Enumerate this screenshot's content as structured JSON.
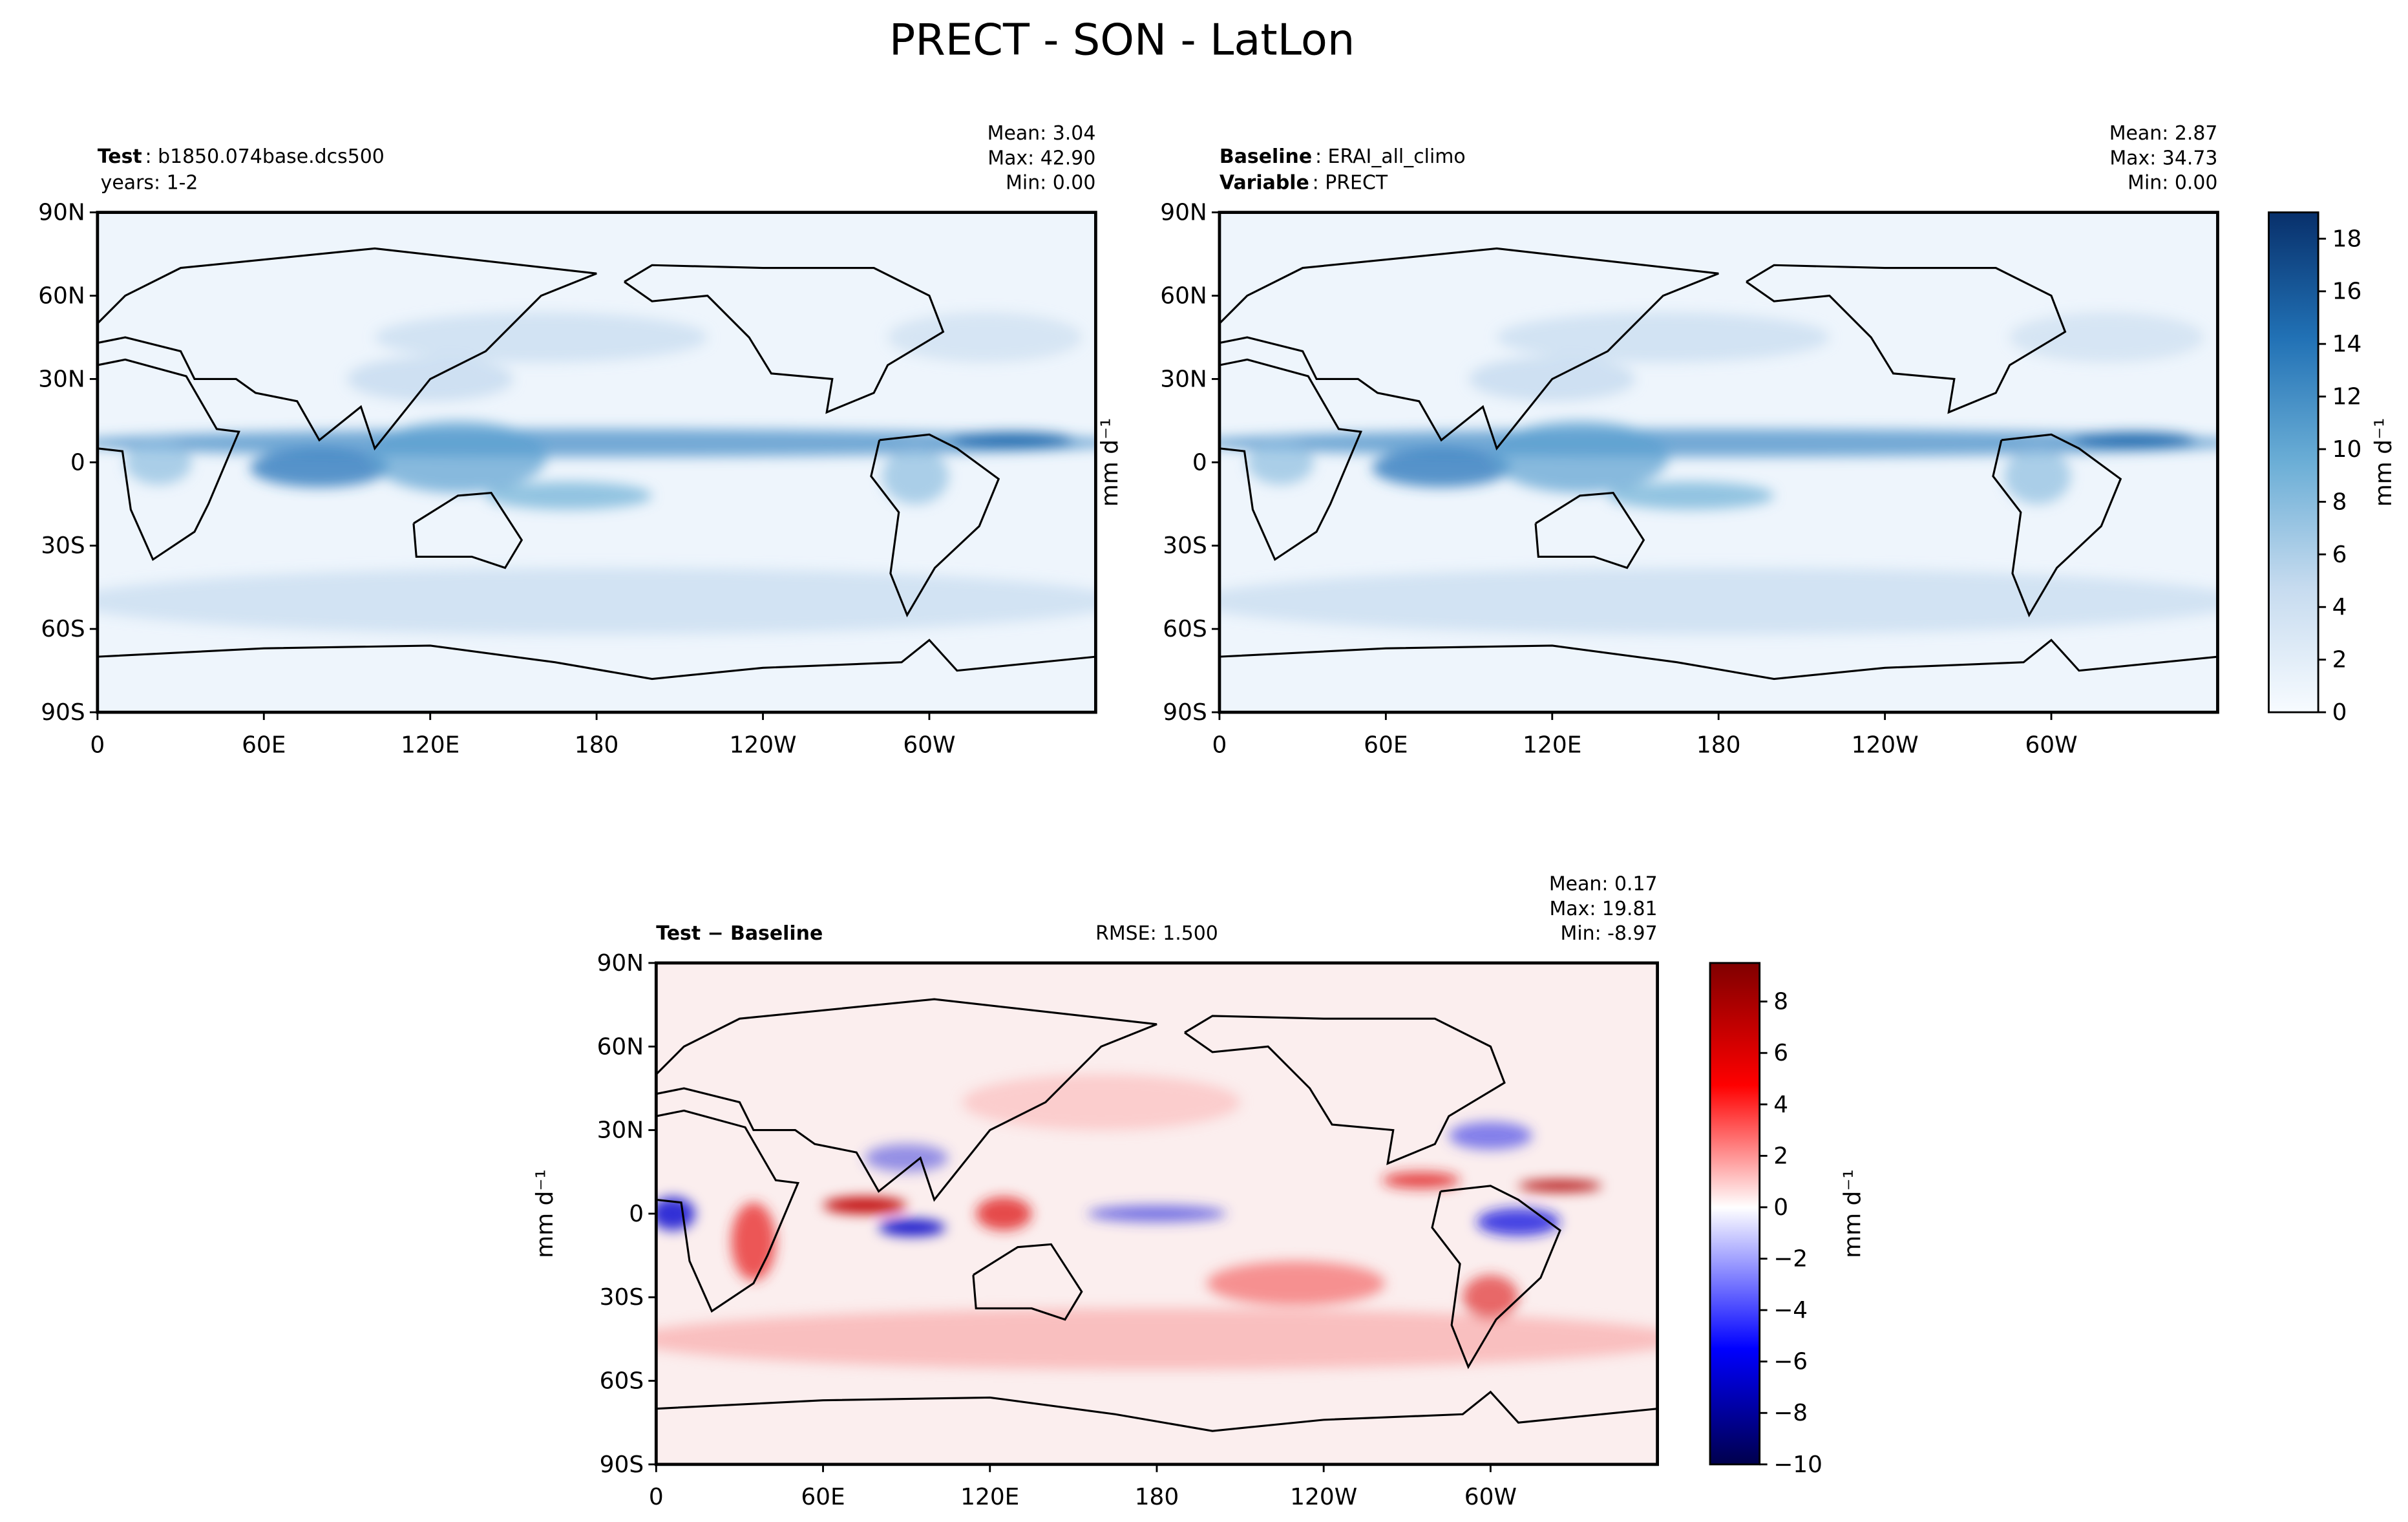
{
  "title": "PRECT - SON - LatLon",
  "chart_data": [
    {
      "type": "map",
      "colormap": "Blues",
      "heading": [
        {
          "bold": "Test",
          "text": ": b1850.074base.dcs500"
        },
        {
          "text": "years: 1-2"
        }
      ],
      "stats": [
        "Mean:  3.04",
        "Max: 42.90",
        "Min:  0.00"
      ],
      "xlim": [
        0,
        360
      ],
      "ylim": [
        -90,
        90
      ],
      "xticks": [
        0,
        {
          "value": 60,
          "label": "60E"
        },
        {
          "value": 120,
          "label": "120E"
        },
        180,
        {
          "value": 240,
          "label": "120W"
        },
        {
          "value": 300,
          "label": "60W"
        }
      ],
      "yticks": [
        {
          "value": -90,
          "label": "90S"
        },
        {
          "value": -60,
          "label": "60S"
        },
        {
          "value": -30,
          "label": "30S"
        },
        0,
        {
          "value": 30,
          "label": "30N"
        },
        {
          "value": 60,
          "label": "60N"
        },
        {
          "value": 90,
          "label": "90N"
        }
      ]
    },
    {
      "type": "map",
      "colormap": "Blues",
      "heading": [
        {
          "bold": "Baseline",
          "text": ": ERAI_all_climo"
        },
        {
          "bold": "Variable",
          "text": ": PRECT"
        }
      ],
      "stats": [
        "Mean:  2.87",
        "Max: 34.73",
        "Min:  0.00"
      ],
      "ylabel": "mm d⁻¹",
      "xlim": [
        0,
        360
      ],
      "ylim": [
        -90,
        90
      ],
      "xticks": [
        0,
        {
          "value": 60,
          "label": "60E"
        },
        {
          "value": 120,
          "label": "120E"
        },
        180,
        {
          "value": 240,
          "label": "120W"
        },
        {
          "value": 300,
          "label": "60W"
        }
      ],
      "yticks": [
        {
          "value": -90,
          "label": "90S"
        },
        {
          "value": -60,
          "label": "60S"
        },
        {
          "value": -30,
          "label": "30S"
        },
        0,
        {
          "value": 30,
          "label": "30N"
        },
        {
          "value": 60,
          "label": "60N"
        },
        {
          "value": 90,
          "label": "90N"
        }
      ],
      "colorbar": {
        "lim": [
          0,
          19
        ],
        "ticks": [
          0,
          2,
          4,
          6,
          8,
          10,
          12,
          14,
          16,
          18
        ],
        "label": "mm d⁻¹"
      }
    },
    {
      "type": "map",
      "colormap": "seismic",
      "heading": [
        {
          "bold": "Test − Baseline"
        }
      ],
      "rmse": "RMSE: 1.500",
      "stats": [
        "Mean:  0.17",
        "Max: 19.81",
        "Min: -8.97"
      ],
      "ylabel": "mm d⁻¹",
      "xlim": [
        0,
        360
      ],
      "ylim": [
        -90,
        90
      ],
      "xticks": [
        0,
        {
          "value": 60,
          "label": "60E"
        },
        {
          "value": 120,
          "label": "120E"
        },
        180,
        {
          "value": 240,
          "label": "120W"
        },
        {
          "value": 300,
          "label": "60W"
        }
      ],
      "yticks": [
        {
          "value": -90,
          "label": "90S"
        },
        {
          "value": -60,
          "label": "60S"
        },
        {
          "value": -30,
          "label": "30S"
        },
        0,
        {
          "value": 30,
          "label": "30N"
        },
        {
          "value": 60,
          "label": "60N"
        },
        {
          "value": 90,
          "label": "90N"
        }
      ],
      "colorbar": {
        "lim": [
          -10,
          9.5
        ],
        "ticks": [
          {
            "value": -10,
            "label": "−10"
          },
          {
            "value": -8,
            "label": "−8"
          },
          {
            "value": -6,
            "label": "−6"
          },
          {
            "value": -4,
            "label": "−4"
          },
          {
            "value": -2,
            "label": "−2"
          },
          0,
          2,
          4,
          6,
          8
        ],
        "label": "mm d⁻¹"
      }
    }
  ]
}
